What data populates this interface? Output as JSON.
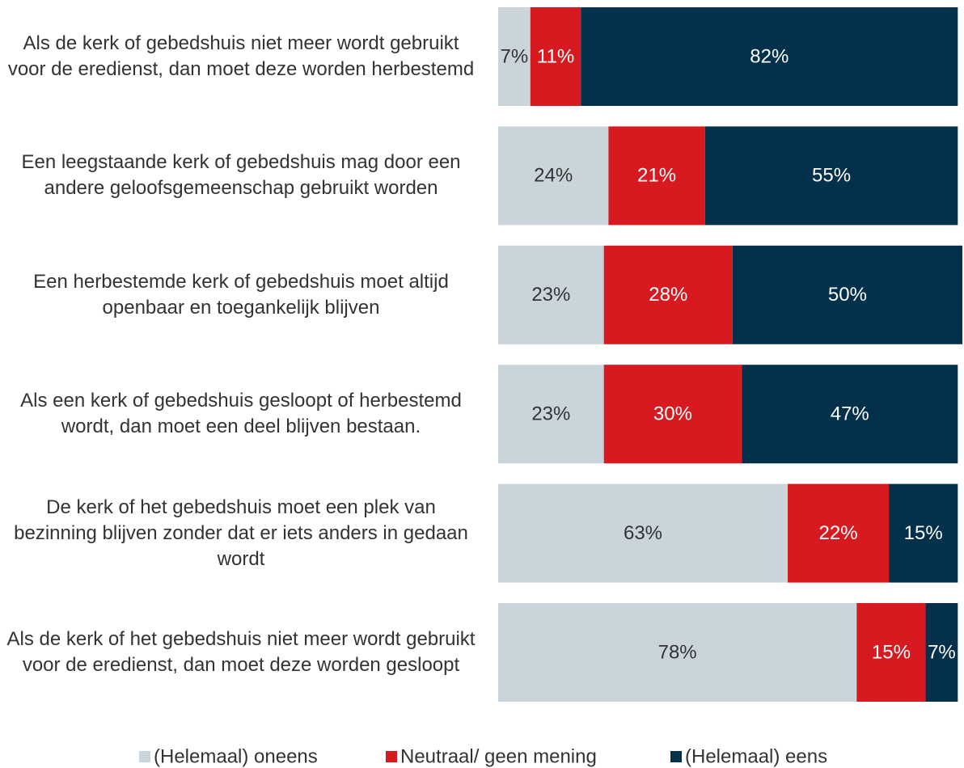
{
  "chart_data": {
    "type": "stacked-bar-horizontal",
    "categories": [
      "Als de kerk of gebedshuis niet meer wordt gebruikt voor de eredienst, dan moet deze worden herbestemd",
      "Een leegstaande kerk of gebedshuis mag door een andere geloofsgemeenschap gebruikt worden",
      "Een herbestemde kerk of gebedshuis moet altijd openbaar en toegankelijk blijven",
      "Als een kerk of gebedshuis gesloopt of herbestemd wordt, dan moet een deel blijven bestaan.",
      "De kerk of het gebedshuis moet een plek van bezinning blijven zonder dat er iets anders in gedaan wordt",
      "Als de kerk of het gebedshuis niet meer wordt gebruikt voor de eredienst, dan moet deze worden gesloopt"
    ],
    "series": [
      {
        "name": "(Helemaal) oneens",
        "color": "#c9d4db",
        "label_color": "#333333",
        "values": [
          7,
          24,
          23,
          23,
          63,
          78
        ],
        "value_labels": [
          "7%",
          "24%",
          "23%",
          "23%",
          "63%",
          "78%"
        ]
      },
      {
        "name": "Neutraal/ geen mening",
        "color": "#d71920",
        "label_color": "#ffffff",
        "values": [
          11,
          21,
          28,
          30,
          22,
          15
        ],
        "value_labels": [
          "11%",
          "21%",
          "28%",
          "30%",
          "22%",
          "15%"
        ]
      },
      {
        "name": "(Helemaal) eens",
        "color": "#03314b",
        "label_color": "#ffffff",
        "values": [
          82,
          55,
          50,
          47,
          15,
          7
        ],
        "value_labels": [
          "82%",
          "55%",
          "50%",
          "47%",
          "15%",
          "7%"
        ]
      }
    ]
  }
}
